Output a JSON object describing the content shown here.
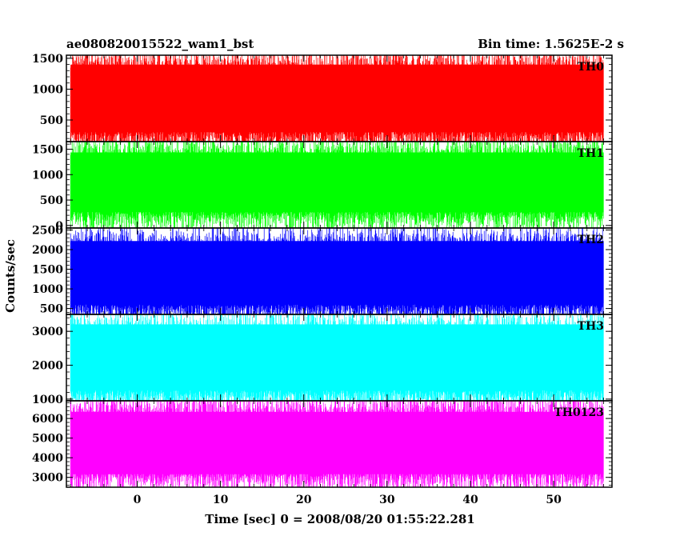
{
  "chart_data": {
    "type": "line",
    "title_left": "ae080820015522_wam1_bst",
    "title_right": "Bin time: 1.5625E-2 s",
    "xlabel": "Time [sec] 0 = 2008/08/20 01:55:22.281",
    "ylabel": "Counts/sec",
    "xlim": [
      -8.5,
      57
    ],
    "xticks": [
      0,
      10,
      20,
      30,
      40,
      50
    ],
    "grid": false,
    "x_start": -8,
    "x_end": 56,
    "series": [
      {
        "name": "TH0",
        "color": "#ff0000",
        "ylim": [
          150,
          1550
        ],
        "yticks": [
          500,
          1000,
          1500
        ],
        "typical_low": 250,
        "typical_high": 1450,
        "center": 800
      },
      {
        "name": "TH1",
        "color": "#00ff00",
        "ylim": [
          -50,
          1650
        ],
        "yticks": [
          0,
          500,
          1000,
          1500
        ],
        "typical_low": 200,
        "typical_high": 1500,
        "center": 800
      },
      {
        "name": "TH2",
        "color": "#0000ff",
        "ylim": [
          350,
          2550
        ],
        "yticks": [
          500,
          1000,
          1500,
          2000,
          2500
        ],
        "typical_low": 550,
        "typical_high": 2300,
        "center": 1300
      },
      {
        "name": "TH3",
        "color": "#00ffff",
        "ylim": [
          950,
          3500
        ],
        "yticks": [
          1000,
          2000,
          3000
        ],
        "typical_low": 1200,
        "typical_high": 3300,
        "center": 2100
      },
      {
        "name": "TH0123",
        "color": "#ff00ff",
        "ylim": [
          2500,
          6900
        ],
        "yticks": [
          3000,
          4000,
          5000,
          6000
        ],
        "typical_low": 3000,
        "typical_high": 6500,
        "center": 4700
      }
    ]
  }
}
